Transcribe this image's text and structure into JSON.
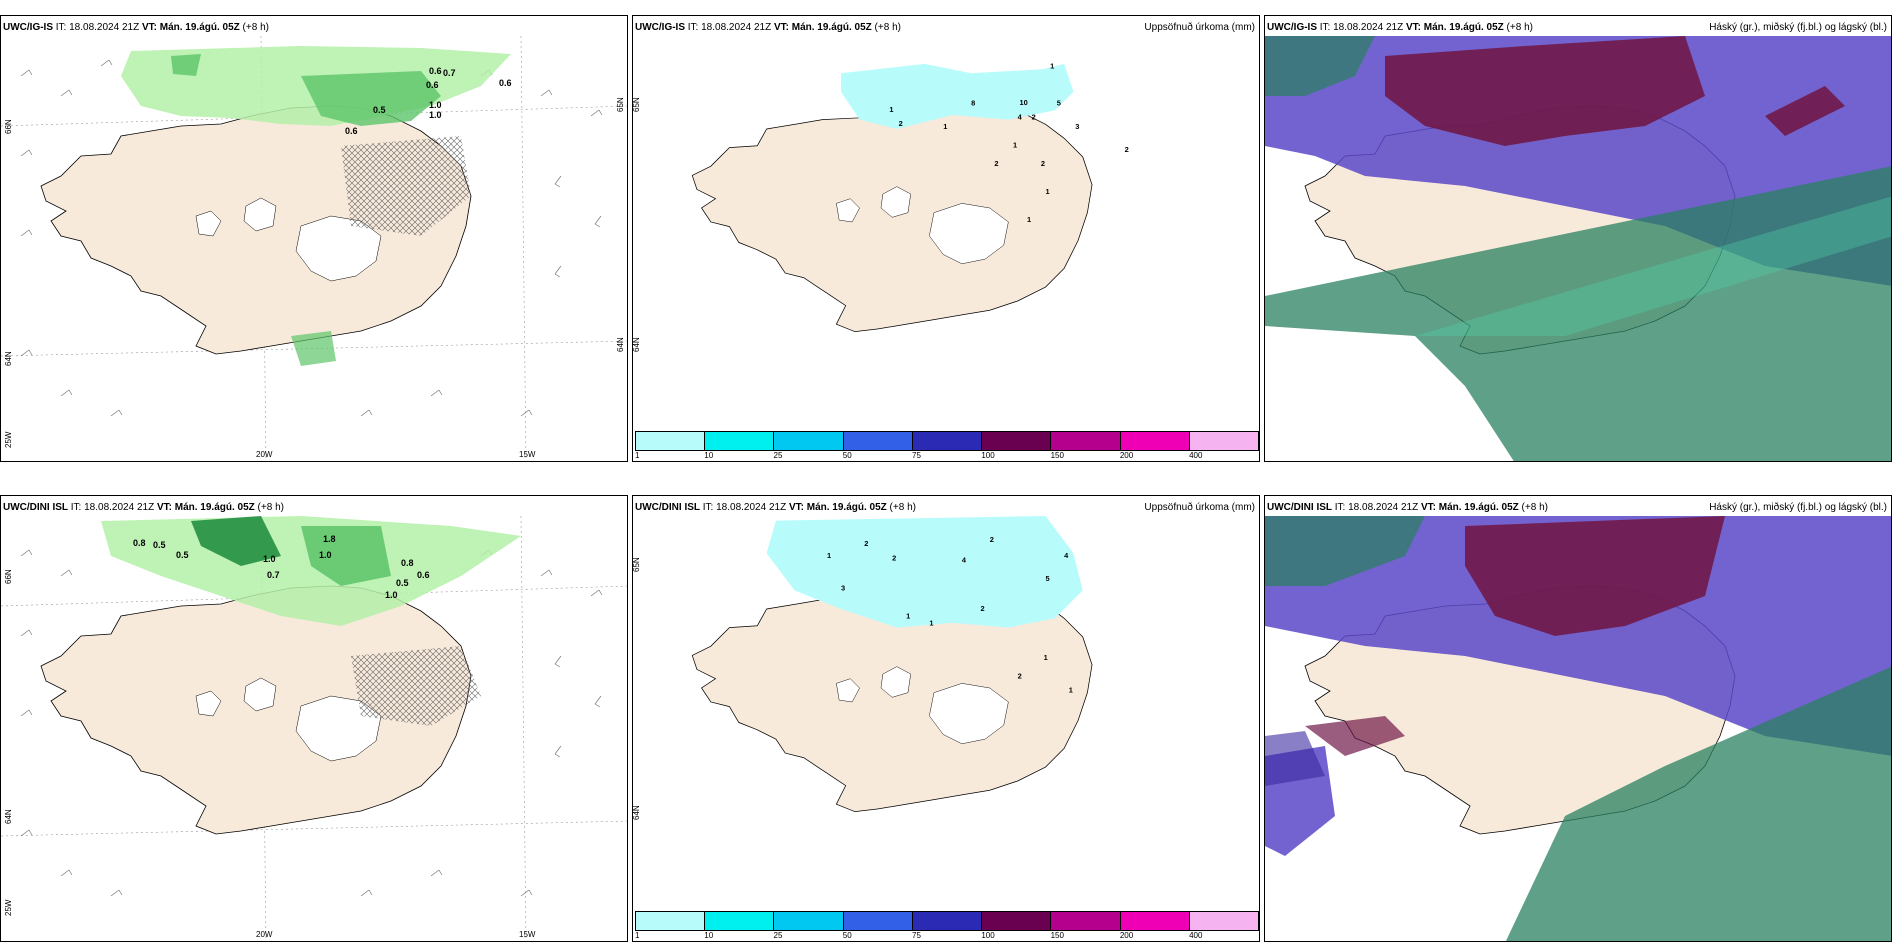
{
  "panels": {
    "r1c1": {
      "model_label": "UWC/IG-IS",
      "it_prefix": " IT: ",
      "it": "18.08.2024 21Z",
      "vt_prefix": " VT: Mán. 19.ágú. 05Z",
      "lead": " (+8 h)",
      "lat_labels": [
        "66N",
        "64N",
        "25W"
      ],
      "lon_labels": [
        "20W",
        "15W"
      ],
      "right_labels": [
        "65N",
        "64N"
      ]
    },
    "r1c2": {
      "model_label": "UWC/IG-IS",
      "it_prefix": " IT: ",
      "it": "18.08.2024 21Z",
      "vt_prefix": " VT: Mán. 19.ágú. 05Z",
      "lead": " (+8 h)",
      "title_right": "Uppsöfnuð úrkoma (mm)",
      "lat_labels": [
        "65N",
        "64N"
      ]
    },
    "r1c3": {
      "model_label": "UWC/IG-IS",
      "it_prefix": " IT: ",
      "it": "18.08.2024 21Z",
      "vt_prefix": " VT: Mán. 19.ágú. 05Z",
      "lead": " (+8 h)",
      "title_right": "Háský (gr.), miðský (fj.bl.) og lágský (bl.)"
    },
    "r2c1": {
      "model_label": "UWC/DINI ISL",
      "it_prefix": " IT: ",
      "it": "18.08.2024 21Z",
      "vt_prefix": " VT: Mán. 19.ágú. 05Z",
      "lead": " (+8 h)",
      "lat_labels": [
        "66N",
        "64N",
        "25W"
      ],
      "lon_labels": [
        "20W",
        "15W"
      ]
    },
    "r2c2": {
      "model_label": "UWC/DINI ISL",
      "it_prefix": " IT: ",
      "it": "18.08.2024 21Z",
      "vt_prefix": " VT: Mán. 19.ágú. 05Z",
      "lead": " (+8 h)",
      "title_right": "Uppsöfnuð úrkoma (mm)",
      "lat_labels": [
        "65N",
        "64N"
      ]
    },
    "r2c3": {
      "model_label": "UWC/DINI ISL",
      "it_prefix": " IT: ",
      "it": "18.08.2024 21Z",
      "vt_prefix": " VT: Mán. 19.ágú. 05Z",
      "lead": " (+8 h)",
      "title_right": "Háský (gr.), miðský (fj.bl.) og lágský (bl.)"
    }
  },
  "precip_values": {
    "r1c1": [
      "0.6",
      "0.7",
      "0.6",
      "0.6",
      "0.5",
      "1.0",
      "1.0",
      "0.6"
    ],
    "r1c2": [
      "1",
      "8",
      "10",
      "5",
      "2",
      "3",
      "4",
      "1",
      "2",
      "1",
      "2",
      "1",
      "2",
      "1",
      "1",
      "2"
    ],
    "r2c1": [
      "0.8",
      "0.5",
      "0.5",
      "1.0",
      "0.7",
      "1.8",
      "1.0",
      "0.8",
      "0.6",
      "0.5",
      "1.0"
    ],
    "r2c2": [
      "2",
      "1",
      "2",
      "4",
      "3",
      "2",
      "5",
      "4",
      "1",
      "2",
      "1",
      "1",
      "2",
      "1"
    ]
  },
  "colorbar": {
    "ticks": [
      "1",
      "10",
      "25",
      "50",
      "75",
      "100",
      "150",
      "200",
      "400"
    ],
    "colors": [
      "#b8fbfb",
      "#00f0f0",
      "#00c8f0",
      "#3260e6",
      "#2a2ab4",
      "#6a0050",
      "#b4008c",
      "#f000b4",
      "#f5b4f0"
    ]
  },
  "colors": {
    "land": "#f8eadb",
    "glacier": "#ffffff",
    "precip_light": "#b8fbfb",
    "green_light": "#b4f0a8",
    "green_mid": "#5cc46a",
    "green_dark": "#1a8a3a",
    "high_cloud": "#2a8060",
    "mid_cloud": "#5a48c8",
    "low_cloud": "#701848"
  }
}
